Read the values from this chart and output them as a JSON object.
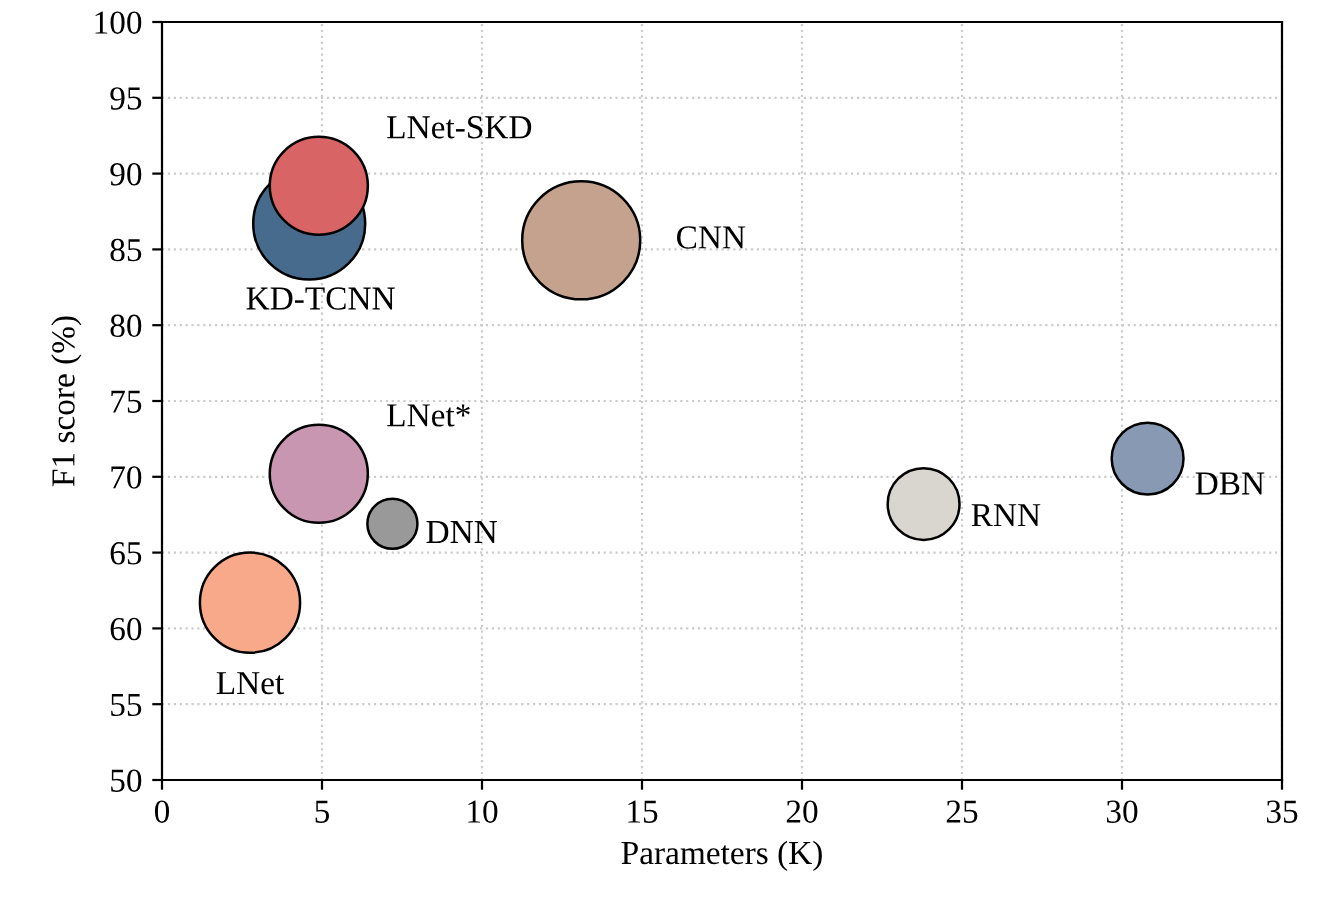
{
  "chart_data": {
    "type": "bubble",
    "xlabel": "Parameters (K)",
    "ylabel": "F1 score (%)",
    "xlim": [
      0,
      35
    ],
    "ylim": [
      50,
      100
    ],
    "xticks": [
      0,
      5,
      10,
      15,
      20,
      25,
      30,
      35
    ],
    "yticks": [
      50,
      55,
      60,
      65,
      70,
      75,
      80,
      85,
      90,
      95,
      100
    ],
    "grid": true,
    "legend": false,
    "series": [
      {
        "name": "CNN",
        "color": "#c4a28e",
        "x": [
          13.1
        ],
        "values": [
          85.6
        ],
        "sizes": [
          1
        ]
      },
      {
        "name": "KD-TCNN",
        "color": "#476b8c",
        "x": [
          4.6
        ],
        "values": [
          86.7
        ],
        "sizes": [
          0.9
        ]
      },
      {
        "name": "LNet-SKD",
        "color": "#d96466",
        "x": [
          4.9
        ],
        "values": [
          89.2
        ],
        "sizes": [
          0.69
        ]
      },
      {
        "name": "LNet*",
        "color": "#c896b0",
        "x": [
          4.9
        ],
        "values": [
          70.2
        ],
        "sizes": [
          0.69
        ]
      },
      {
        "name": "DNN",
        "color": "#999999",
        "x": [
          7.2
        ],
        "values": [
          66.9
        ],
        "sizes": [
          0.18
        ]
      },
      {
        "name": "LNet",
        "color": "#f7a98a",
        "x": [
          2.75
        ],
        "values": [
          61.7
        ],
        "sizes": [
          0.72
        ]
      },
      {
        "name": "RNN",
        "color": "#d9d6cf",
        "x": [
          23.8
        ],
        "values": [
          68.2
        ],
        "sizes": [
          0.37
        ]
      },
      {
        "name": "DBN",
        "color": "#8799b3",
        "x": [
          30.8
        ],
        "values": [
          71.2
        ],
        "sizes": [
          0.37
        ]
      }
    ]
  }
}
